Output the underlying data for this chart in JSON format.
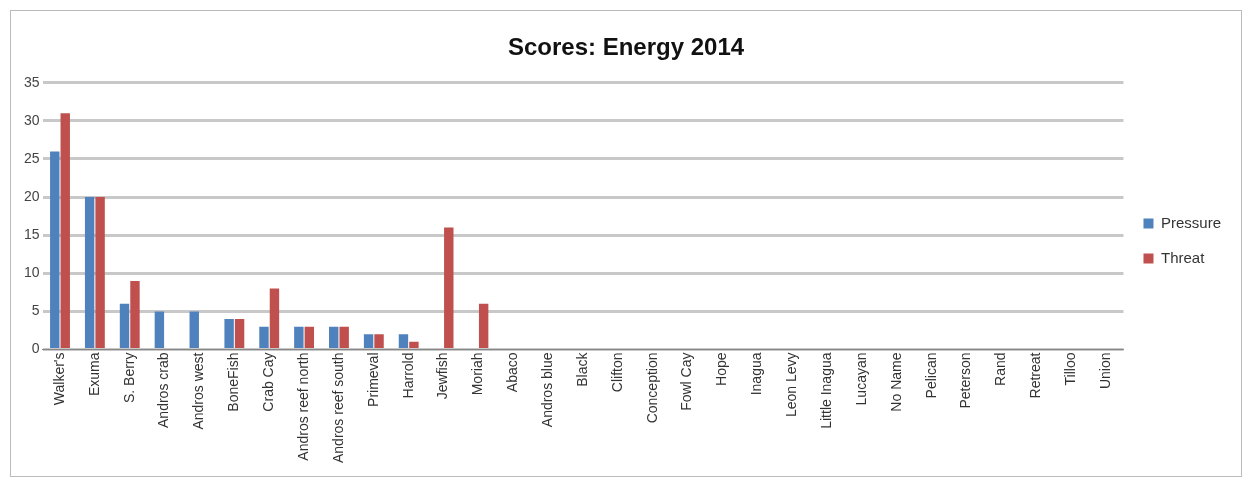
{
  "chart_data": {
    "type": "bar",
    "title": "Scores: Energy 2014",
    "categories": [
      "Walker's",
      "Exuma",
      "S. Berry",
      "Andros crab",
      "Andros west",
      "BoneFish",
      "Crab Cay",
      "Andros reef north",
      "Andros reef south",
      "Primeval",
      "Harrold",
      "Jewfish",
      "Moriah",
      "Abaco",
      "Andros blue",
      "Black",
      "Clifton",
      "Conception",
      "Fowl Cay",
      "Hope",
      "Inagua",
      "Leon Levy",
      "Little Inagua",
      "Lucayan",
      "No Name",
      "Pelican",
      "Peterson",
      "Rand",
      "Retreat",
      "Tilloo",
      "Union"
    ],
    "series": [
      {
        "name": "Pressure",
        "color": "#4f81bd",
        "values": [
          26,
          20,
          6,
          5,
          5,
          4,
          3,
          3,
          3,
          2,
          2,
          0,
          0,
          0,
          0,
          0,
          0,
          0,
          0,
          0,
          0,
          0,
          0,
          0,
          0,
          0,
          0,
          0,
          0,
          0,
          0
        ]
      },
      {
        "name": "Threat",
        "color": "#c0504d",
        "values": [
          31,
          20,
          9,
          0,
          0,
          4,
          8,
          3,
          3,
          2,
          1,
          16,
          6,
          0,
          0,
          0,
          0,
          0,
          0,
          0,
          0,
          0,
          0,
          0,
          0,
          0,
          0,
          0,
          0,
          0,
          0
        ]
      }
    ],
    "ylim": [
      0,
      35
    ],
    "yticks": [
      0,
      5,
      10,
      15,
      20,
      25,
      30,
      35
    ],
    "grid": "y",
    "legend": "right"
  }
}
